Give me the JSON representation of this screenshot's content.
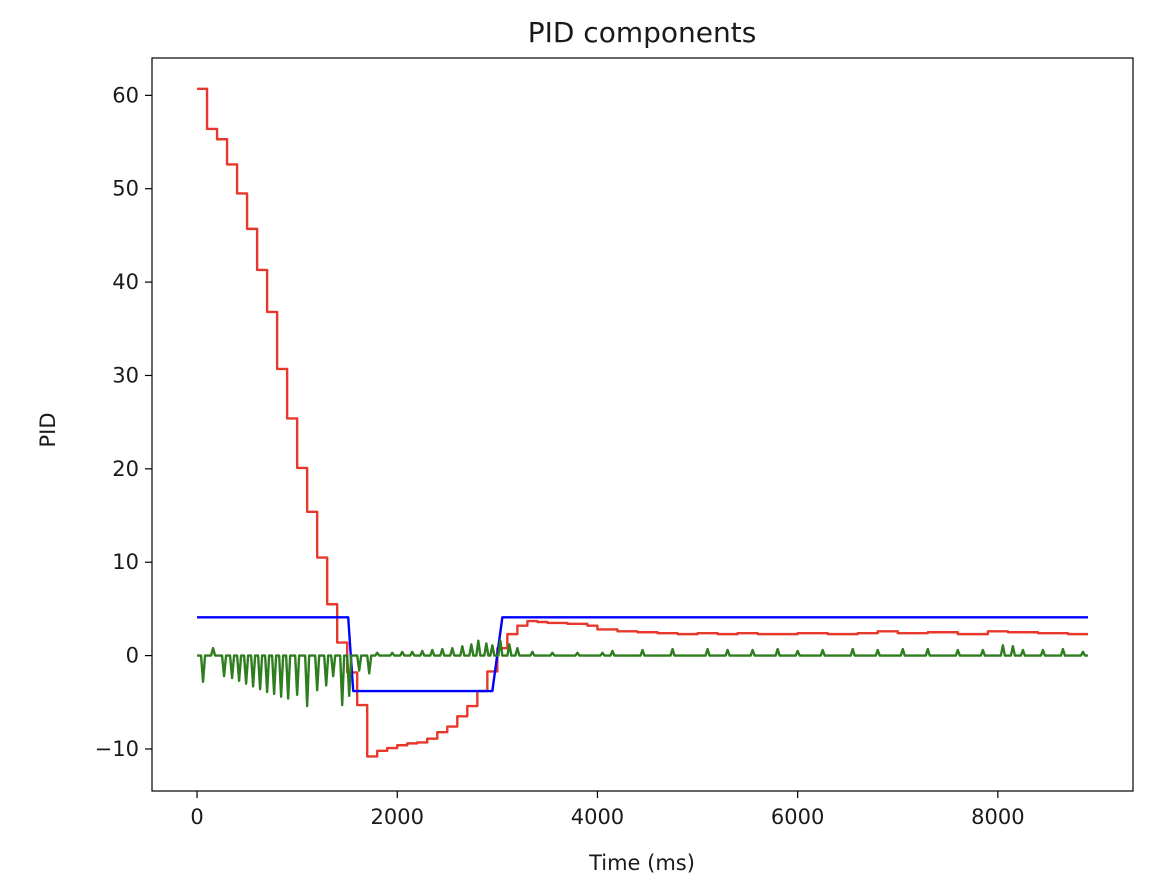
{
  "chart_data": {
    "type": "line",
    "title": "PID components",
    "xlabel": "Time (ms)",
    "ylabel": "PID",
    "xlim": [
      -450,
      9350
    ],
    "ylim": [
      -14.5,
      64
    ],
    "xticks": [
      0,
      2000,
      4000,
      6000,
      8000
    ],
    "xtick_labels": [
      "0",
      "2000",
      "4000",
      "6000",
      "8000"
    ],
    "yticks": [
      -10,
      0,
      10,
      20,
      30,
      40,
      50,
      60
    ],
    "ytick_labels": [
      "−10",
      "0",
      "10",
      "20",
      "30",
      "40",
      "50",
      "60"
    ],
    "grid": false,
    "legend": "none",
    "series": [
      {
        "color": "#e8382c",
        "step": true,
        "points": [
          [
            0,
            60.7
          ],
          [
            100,
            56.4
          ],
          [
            200,
            55.3
          ],
          [
            300,
            52.6
          ],
          [
            400,
            49.5
          ],
          [
            500,
            45.7
          ],
          [
            600,
            41.3
          ],
          [
            700,
            36.8
          ],
          [
            800,
            30.7
          ],
          [
            900,
            25.4
          ],
          [
            1000,
            20.1
          ],
          [
            1100,
            15.4
          ],
          [
            1200,
            10.5
          ],
          [
            1300,
            5.5
          ],
          [
            1400,
            1.4
          ],
          [
            1500,
            -1.8
          ],
          [
            1600,
            -5.3
          ],
          [
            1700,
            -10.8
          ],
          [
            1800,
            -10.2
          ],
          [
            1900,
            -9.9
          ],
          [
            2000,
            -9.6
          ],
          [
            2100,
            -9.4
          ],
          [
            2200,
            -9.3
          ],
          [
            2300,
            -8.9
          ],
          [
            2400,
            -8.2
          ],
          [
            2500,
            -7.6
          ],
          [
            2600,
            -6.5
          ],
          [
            2700,
            -5.4
          ],
          [
            2800,
            -3.8
          ],
          [
            2900,
            -1.7
          ],
          [
            3000,
            0.8
          ],
          [
            3100,
            2.3
          ],
          [
            3200,
            3.2
          ],
          [
            3300,
            3.7
          ],
          [
            3400,
            3.6
          ],
          [
            3500,
            3.5
          ],
          [
            3700,
            3.4
          ],
          [
            3900,
            3.2
          ],
          [
            4000,
            2.8
          ],
          [
            4200,
            2.6
          ],
          [
            4400,
            2.5
          ],
          [
            4600,
            2.4
          ],
          [
            4800,
            2.3
          ],
          [
            5000,
            2.4
          ],
          [
            5200,
            2.3
          ],
          [
            5400,
            2.4
          ],
          [
            5600,
            2.3
          ],
          [
            5800,
            2.3
          ],
          [
            6000,
            2.4
          ],
          [
            6300,
            2.3
          ],
          [
            6600,
            2.4
          ],
          [
            6800,
            2.6
          ],
          [
            7000,
            2.4
          ],
          [
            7300,
            2.5
          ],
          [
            7600,
            2.3
          ],
          [
            7900,
            2.6
          ],
          [
            8100,
            2.5
          ],
          [
            8400,
            2.4
          ],
          [
            8700,
            2.3
          ],
          [
            8900,
            2.3
          ]
        ]
      },
      {
        "color": "#0000ff",
        "step": false,
        "points": [
          [
            0,
            4.1
          ],
          [
            1510,
            4.1
          ],
          [
            1560,
            -3.8
          ],
          [
            2950,
            -3.8
          ],
          [
            3050,
            4.1
          ],
          [
            8900,
            4.1
          ]
        ]
      },
      {
        "color": "#2e7d1f",
        "step": false,
        "baseline": 0,
        "spike_halfwidth_ms": 20,
        "spikes": [
          [
            60,
            -2.8
          ],
          [
            160,
            0.8
          ],
          [
            270,
            -2.2
          ],
          [
            350,
            -2.4
          ],
          [
            420,
            -2.7
          ],
          [
            490,
            -3.0
          ],
          [
            560,
            -3.3
          ],
          [
            630,
            -3.6
          ],
          [
            700,
            -3.9
          ],
          [
            770,
            -4.1
          ],
          [
            840,
            -4.4
          ],
          [
            910,
            -4.6
          ],
          [
            1000,
            -4.2
          ],
          [
            1100,
            -5.4
          ],
          [
            1200,
            -3.7
          ],
          [
            1290,
            -3.2
          ],
          [
            1360,
            -2.2
          ],
          [
            1450,
            -5.3
          ],
          [
            1520,
            -4.3
          ],
          [
            1620,
            -1.6
          ],
          [
            1720,
            -1.9
          ],
          [
            1800,
            0.3
          ],
          [
            1950,
            0.3
          ],
          [
            2050,
            0.4
          ],
          [
            2150,
            0.4
          ],
          [
            2250,
            0.5
          ],
          [
            2350,
            0.6
          ],
          [
            2450,
            0.7
          ],
          [
            2550,
            0.8
          ],
          [
            2650,
            1.0
          ],
          [
            2740,
            1.2
          ],
          [
            2810,
            1.6
          ],
          [
            2890,
            1.3
          ],
          [
            2950,
            1.1
          ],
          [
            3030,
            1.6
          ],
          [
            3120,
            1.2
          ],
          [
            3200,
            0.8
          ],
          [
            3350,
            0.4
          ],
          [
            3550,
            0.3
          ],
          [
            3800,
            0.3
          ],
          [
            4050,
            0.3
          ],
          [
            4150,
            0.5
          ],
          [
            4450,
            0.6
          ],
          [
            4750,
            0.7
          ],
          [
            5100,
            0.7
          ],
          [
            5300,
            0.6
          ],
          [
            5550,
            0.6
          ],
          [
            5800,
            0.7
          ],
          [
            6000,
            0.5
          ],
          [
            6250,
            0.6
          ],
          [
            6550,
            0.7
          ],
          [
            6800,
            0.6
          ],
          [
            7050,
            0.7
          ],
          [
            7300,
            0.7
          ],
          [
            7600,
            0.6
          ],
          [
            7850,
            0.6
          ],
          [
            8050,
            1.1
          ],
          [
            8150,
            1.0
          ],
          [
            8250,
            0.6
          ],
          [
            8450,
            0.6
          ],
          [
            8650,
            0.7
          ],
          [
            8850,
            0.4
          ]
        ],
        "x_end": 8900
      }
    ]
  }
}
